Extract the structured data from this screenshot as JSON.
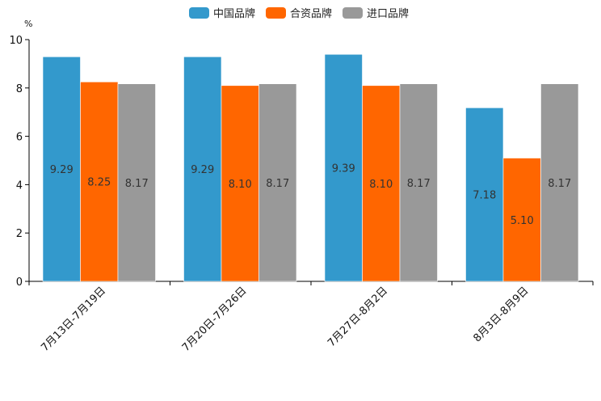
{
  "chart_data": {
    "type": "bar",
    "title": "",
    "xlabel": "",
    "ylabel": "%",
    "ylim": [
      0,
      10
    ],
    "yticks": [
      0,
      2,
      4,
      6,
      8,
      10
    ],
    "legend_position": "top-center",
    "grid": false,
    "categories": [
      "7月13日-7月19日",
      "7月20日-7月26日",
      "7月27日-8月2日",
      "8月3日-8月9日"
    ],
    "series": [
      {
        "name": "中国品牌",
        "color": "#3399CC",
        "values": [
          9.29,
          9.29,
          9.39,
          7.18
        ]
      },
      {
        "name": "合资品牌",
        "color": "#FF6600",
        "values": [
          8.25,
          8.1,
          8.1,
          5.1
        ]
      },
      {
        "name": "进口品牌",
        "color": "#999999",
        "values": [
          8.17,
          8.17,
          8.17,
          8.17
        ]
      }
    ]
  }
}
